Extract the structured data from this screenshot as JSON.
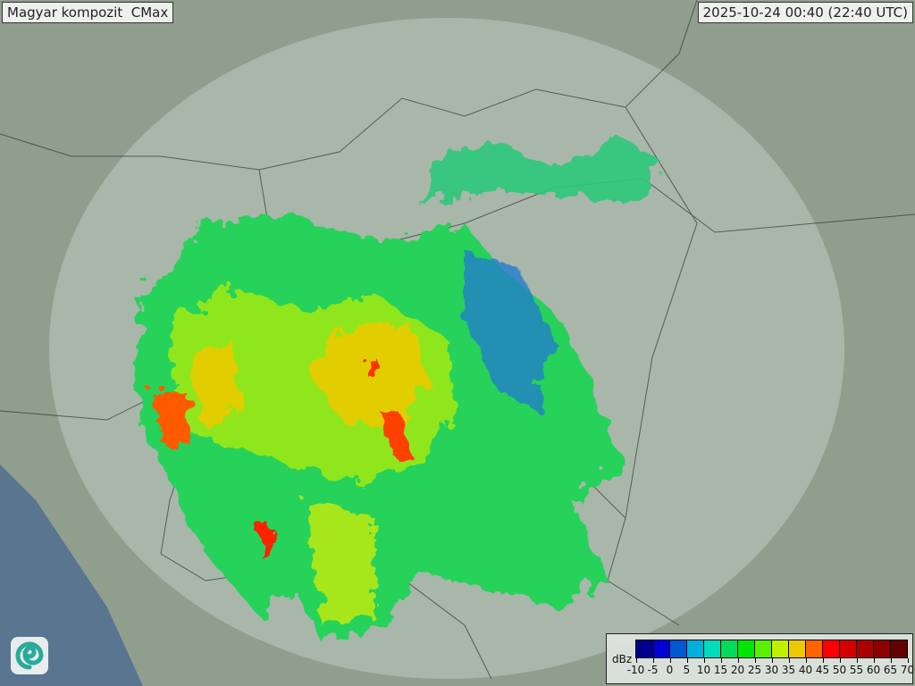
{
  "title": "Magyar kompozit  CMax",
  "timestamp": "2025-10-24 00:40 (22:40 UTC)",
  "logo": "swirl-logo",
  "legend": {
    "unit": "dBz",
    "labels": [
      "-10",
      "-5",
      "0",
      "5",
      "10",
      "15",
      "20",
      "25",
      "30",
      "35",
      "40",
      "45",
      "50",
      "55",
      "60",
      "65",
      "70"
    ],
    "colors": [
      "#00008c",
      "#0000d2",
      "#0058d2",
      "#00b0dc",
      "#00dcbc",
      "#00dc5a",
      "#00e600",
      "#5af000",
      "#c0f000",
      "#f0c800",
      "#ff6400",
      "#ff0000",
      "#d20000",
      "#aa0000",
      "#8c0000",
      "#640000"
    ]
  }
}
